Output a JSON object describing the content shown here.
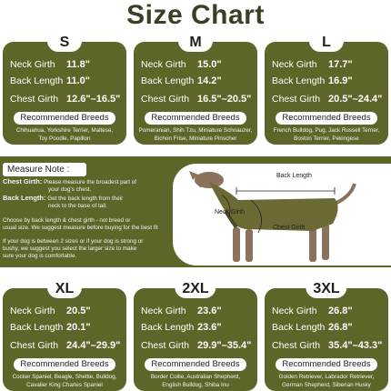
{
  "title": "Size Chart",
  "labels": {
    "neck": "Neck Girth",
    "back": "Back Length",
    "chest": "Chest Girth",
    "recommended": "Recommended Breeds"
  },
  "sizes": [
    {
      "size": "S",
      "neck": "11.8\"",
      "back": "11.0\"",
      "chest": "12.6\"–16.5\"",
      "breeds": [
        "Chihuahua, Yorkshire Terrier, Maltese,",
        "Toy Poodle, Papillon"
      ]
    },
    {
      "size": "M",
      "neck": "15.0\"",
      "back": "14.2\"",
      "chest": "16.5\"–20.5\"",
      "breeds": [
        "Pomeranian, Shih Tzu, Miniature Schnauzer,",
        "Bichon Frise, Miniature Pinscher"
      ]
    },
    {
      "size": "L",
      "neck": "17.7\"",
      "back": "16.9\"",
      "chest": "20.5\"–24.4\"",
      "breeds": [
        "French Bulldog, Pug, Jack Russell Terrier,",
        "Boston Terrier, Pekingese"
      ]
    },
    {
      "size": "XL",
      "neck": "20.5\"",
      "back": "20.1\"",
      "chest": "24.4\"–29.9\"",
      "breeds": [
        "Cocker Spaniel, Beagle, Sheltie, Bulldog,",
        "Cavalier King Charles Spaniel"
      ]
    },
    {
      "size": "2XL",
      "neck": "23.6\"",
      "back": "23.6\"",
      "chest": "29.9\"–35.4\"",
      "breeds": [
        "Border Collie, Australian Shepherd,",
        "English Bulldog, Shiba Inu"
      ]
    },
    {
      "size": "3XL",
      "neck": "26.8\"",
      "back": "26.8\"",
      "chest": "35.4\"–43.3\"",
      "breeds": [
        "Golden Retriever, Labrador Retriever,",
        "German Shepherd, Siberian Husky"
      ]
    }
  ],
  "measure": {
    "heading": "Measure Note :",
    "chest_title": "Chest Girth:",
    "chest_desc_1": "Please measure the broadest part of",
    "chest_desc_2": "your dog's chest.",
    "back_title": "Back Length:",
    "back_desc_1": "Get the back length from their",
    "back_desc_2": "neck to the base of tail.",
    "tip1_1": "Choose by back length & chest girth - not breed or",
    "tip1_2": "usual size. We suggest measure before buying for the best fit",
    "tip2_1": "If your dog is between 2 sizes or if your dog is strong or",
    "tip2_2": "bushy, we suggest you select the larger size to make",
    "tip2_3": "sure your dog is comfortable.",
    "diagram_back": "Back Length",
    "diagram_neck": "Neck Girth",
    "diagram_chest": "Chest Girth"
  },
  "colors": {
    "olive": "#5d6628",
    "title": "#3b3f24",
    "coat": "#6b6a35",
    "dog": "#8a725d"
  }
}
